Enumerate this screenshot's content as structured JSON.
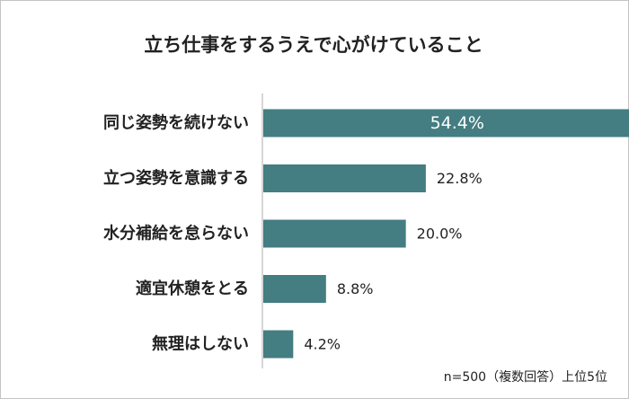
{
  "chart_data": {
    "type": "bar",
    "orientation": "horizontal",
    "title": "立ち仕事をするうえで心がけていること",
    "categories": [
      "同じ姿勢を続けない",
      "立つ姿勢を意識する",
      "水分補給を怠らない",
      "適宜休憩をとる",
      "無理はしない"
    ],
    "values": [
      54.4,
      22.8,
      20.0,
      8.8,
      4.2
    ],
    "value_labels": [
      "54.4%",
      "22.8%",
      "20.0%",
      "8.8%",
      "4.2%"
    ],
    "xlim": [
      0,
      60
    ],
    "grid": false,
    "note": "n=500（複数回答）上位5位",
    "colors": {
      "bar": "#447d82",
      "axis": "#c8c8c8",
      "text": "#222222",
      "label_inside": "#ffffff"
    }
  }
}
